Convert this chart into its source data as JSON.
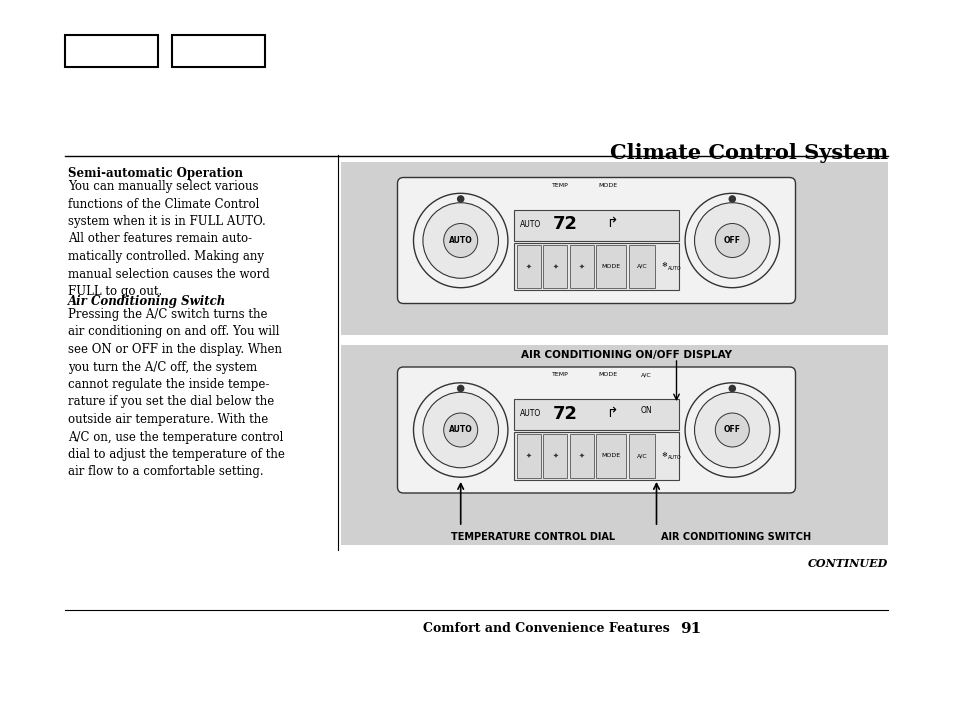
{
  "page_title": "Climate Control System",
  "subtitle_bold": "Semi-automatic Operation",
  "body_text1": "You can manually select various\nfunctions of the Climate Control\nsystem when it is in FULL AUTO.\nAll other features remain auto-\nmatically controlled. Making any\nmanual selection causes the word\nFULL to go out.",
  "italic_heading": "Air Conditioning Switch",
  "body_text2": "Pressing the A/C switch turns the\nair conditioning on and off. You will\nsee ON or OFF in the display. When\nyou turn the A/C off, the system\ncannot regulate the inside tempe-\nrature if you set the dial below the\noutside air temperature. With the\nA/C on, use the temperature control\ndial to adjust the temperature of the\nair flow to a comfortable setting.",
  "bottom_label_left": "Comfort and Convenience Features",
  "bottom_page_num": "91",
  "continued": "CONTINUED",
  "label_temp_dial": "TEMPERATURE CONTROL DIAL",
  "label_ac_switch": "AIR CONDITIONING SWITCH",
  "label_ac_display": "AIR CONDITIONING ON/OFF DISPLAY",
  "background_color": "#ffffff",
  "panel_bg": "#d0d0d0",
  "box_nav_color": "#ffffff"
}
